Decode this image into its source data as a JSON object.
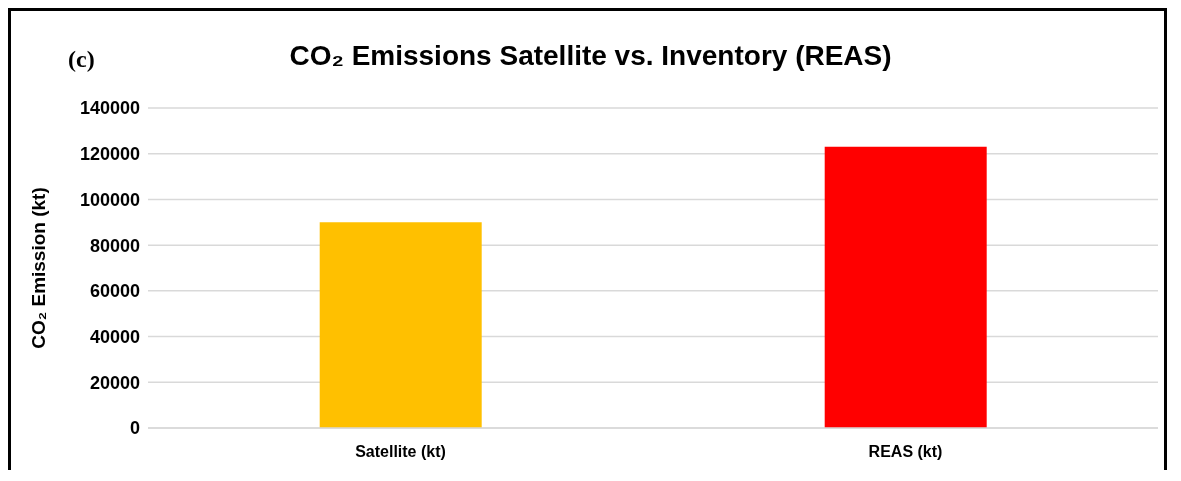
{
  "chart_data": {
    "type": "bar",
    "title": "CO₂ Emissions Satellite vs. Inventory (REAS)",
    "annotations": [
      "(c)"
    ],
    "ylabel": "CO₂ Emission (kt)",
    "categories": [
      "Satellite (kt)",
      "REAS (kt)"
    ],
    "values": [
      90000,
      123000
    ],
    "colors": [
      "#ffc000",
      "#ff0000"
    ],
    "ylim": [
      0,
      140000
    ],
    "yticks": [
      0,
      20000,
      40000,
      60000,
      80000,
      100000,
      120000,
      140000
    ],
    "grid": "y"
  }
}
